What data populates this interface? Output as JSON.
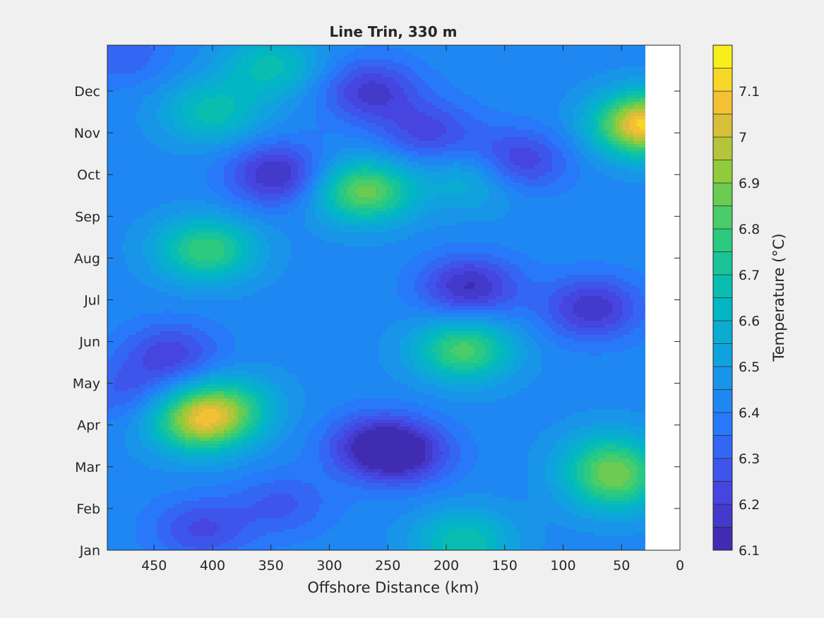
{
  "chart_data": {
    "type": "heatmap",
    "title": "Line Trin, 330 m",
    "xlabel": "Offshore Distance (km)",
    "ylabel": "",
    "x_reversed": true,
    "xlim": [
      0,
      490
    ],
    "x_ticks": [
      450,
      400,
      350,
      300,
      250,
      200,
      150,
      100,
      50,
      0
    ],
    "y_ticks": [
      "Jan",
      "Feb",
      "Mar",
      "Apr",
      "May",
      "Jun",
      "Jul",
      "Aug",
      "Sep",
      "Oct",
      "Nov",
      "Dec"
    ],
    "data_x_range": [
      30,
      490
    ],
    "colorbar": {
      "label": "Temperature (°C)",
      "range": [
        6.1,
        7.2
      ],
      "ticks": [
        6.1,
        6.2,
        6.3,
        6.4,
        6.5,
        6.6,
        6.7,
        6.8,
        6.9,
        7,
        7.1
      ],
      "levels": 22
    },
    "base_value": 6.43,
    "features": [
      {
        "x": 410,
        "month": 3.1,
        "value": 6.96
      },
      {
        "x": 385,
        "month": 3.5,
        "value": 6.65
      },
      {
        "x": 405,
        "month": 7.2,
        "value": 6.8
      },
      {
        "x": 270,
        "month": 8.6,
        "value": 6.88
      },
      {
        "x": 185,
        "month": 4.8,
        "value": 6.83
      },
      {
        "x": 175,
        "month": 8.9,
        "value": 6.62
      },
      {
        "x": 400,
        "month": 10.5,
        "value": 6.68
      },
      {
        "x": 350,
        "month": 11.6,
        "value": 6.67
      },
      {
        "x": 185,
        "month": 0.2,
        "value": 6.7
      },
      {
        "x": 30,
        "month": 10.2,
        "value": 7.12
      },
      {
        "x": 55,
        "month": 1.6,
        "value": 6.75
      },
      {
        "x": 60,
        "month": 2.2,
        "value": 6.66
      },
      {
        "x": 345,
        "month": 9.0,
        "value": 6.14
      },
      {
        "x": 265,
        "month": 11.0,
        "value": 6.18
      },
      {
        "x": 215,
        "month": 10.0,
        "value": 6.23
      },
      {
        "x": 140,
        "month": 9.3,
        "value": 6.17
      },
      {
        "x": 180,
        "month": 6.3,
        "value": 6.14
      },
      {
        "x": 75,
        "month": 5.8,
        "value": 6.16
      },
      {
        "x": 260,
        "month": 2.5,
        "value": 6.16
      },
      {
        "x": 235,
        "month": 2.3,
        "value": 6.2
      },
      {
        "x": 435,
        "month": 4.7,
        "value": 6.22
      },
      {
        "x": 410,
        "month": 0.5,
        "value": 6.24
      },
      {
        "x": 340,
        "month": 1.1,
        "value": 6.29
      },
      {
        "x": 475,
        "month": 3.8,
        "value": 6.3
      },
      {
        "x": 480,
        "month": 11.9,
        "value": 6.3
      }
    ]
  }
}
